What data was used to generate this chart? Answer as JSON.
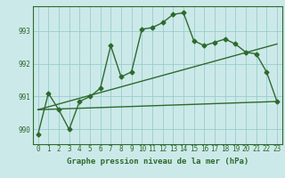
{
  "title": "Graphe pression niveau de la mer (hPa)",
  "bg_color": "#cce9e9",
  "grid_color": "#99cccc",
  "line_color": "#2d6a2d",
  "spine_color": "#2d6a2d",
  "xlim": [
    -0.5,
    23.5
  ],
  "ylim": [
    989.55,
    993.75
  ],
  "yticks": [
    990,
    991,
    992,
    993
  ],
  "xticks": [
    0,
    1,
    2,
    3,
    4,
    5,
    6,
    7,
    8,
    9,
    10,
    11,
    12,
    13,
    14,
    15,
    16,
    17,
    18,
    19,
    20,
    21,
    22,
    23
  ],
  "main_x": [
    0,
    1,
    2,
    3,
    4,
    5,
    6,
    7,
    8,
    9,
    10,
    11,
    12,
    13,
    14,
    15,
    16,
    17,
    18,
    19,
    20,
    21,
    22,
    23
  ],
  "main_y": [
    989.85,
    991.1,
    990.6,
    990.0,
    990.85,
    991.0,
    991.25,
    992.55,
    991.6,
    991.75,
    993.05,
    993.1,
    993.25,
    993.5,
    993.55,
    992.7,
    992.55,
    992.65,
    992.75,
    992.6,
    992.35,
    992.3,
    991.75,
    990.85
  ],
  "line2_x": [
    0,
    23
  ],
  "line2_y": [
    990.6,
    990.85
  ],
  "line3_x": [
    0,
    23
  ],
  "line3_y": [
    990.6,
    992.6
  ],
  "marker": "D",
  "markersize": 2.5,
  "linewidth": 1.0,
  "tick_fontsize": 5.5,
  "label_fontsize": 6.5,
  "label_fontweight": "bold"
}
